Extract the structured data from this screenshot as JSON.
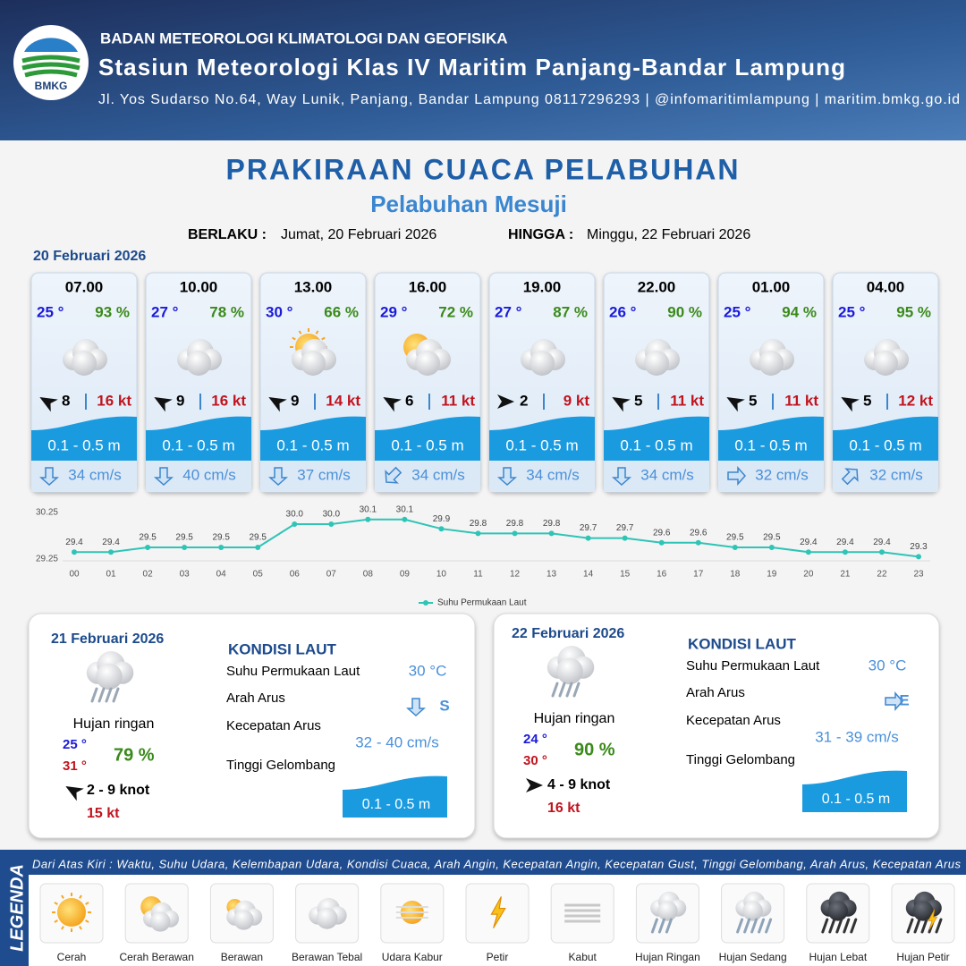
{
  "header": {
    "org": "BADAN METEOROLOGI KLIMATOLOGI DAN GEOFISIKA",
    "station": "Stasiun Meteorologi Klas IV Maritim Panjang-Bandar Lampung",
    "address": "Jl. Yos Sudarso No.64, Way Lunik, Panjang, Bandar Lampung 08117296293 | @infomaritimlampung | maritim.bmkg.go.id",
    "logo_text": "BMKG"
  },
  "title": "PRAKIRAAN CUACA PELABUHAN",
  "subtitle": "Pelabuhan Mesuji",
  "validity": {
    "from_label": "BERLAKU :",
    "from": "Jumat, 20 Februari 2026",
    "to_label": "HINGGA :",
    "to": "Minggu, 22 Februari 2026"
  },
  "day1": {
    "date": "20 Februari 2026",
    "forecasts": [
      {
        "time": "07.00",
        "temp": "25 °",
        "humidity": "93 %",
        "wind_speed": "8",
        "gust": "16 kt",
        "wave": "0.1 - 0.5 m",
        "current": "34 cm/s"
      },
      {
        "time": "10.00",
        "temp": "27 °",
        "humidity": "78 %",
        "wind_speed": "9",
        "gust": "16 kt",
        "wave": "0.1 - 0.5 m",
        "current": "40 cm/s"
      },
      {
        "time": "13.00",
        "temp": "30 °",
        "humidity": "66 %",
        "wind_speed": "9",
        "gust": "14 kt",
        "wave": "0.1 - 0.5 m",
        "current": "37 cm/s"
      },
      {
        "time": "16.00",
        "temp": "29 °",
        "humidity": "72 %",
        "wind_speed": "6",
        "gust": "11 kt",
        "wave": "0.1 - 0.5 m",
        "current": "34 cm/s"
      },
      {
        "time": "19.00",
        "temp": "27 °",
        "humidity": "87 %",
        "wind_speed": "2",
        "gust": "9 kt",
        "wave": "0.1 - 0.5 m",
        "current": "34 cm/s"
      },
      {
        "time": "22.00",
        "temp": "26 °",
        "humidity": "90 %",
        "wind_speed": "5",
        "gust": "11 kt",
        "wave": "0.1 - 0.5 m",
        "current": "34 cm/s"
      },
      {
        "time": "01.00",
        "temp": "25 °",
        "humidity": "94 %",
        "wind_speed": "5",
        "gust": "11 kt",
        "wave": "0.1 - 0.5 m",
        "current": "32 cm/s"
      },
      {
        "time": "04.00",
        "temp": "25 °",
        "humidity": "95 %",
        "wind_speed": "5",
        "gust": "12 kt",
        "wave": "0.1 - 0.5 m",
        "current": "32 cm/s"
      }
    ]
  },
  "chart_data": {
    "type": "line",
    "categories": [
      "00",
      "01",
      "02",
      "03",
      "04",
      "05",
      "06",
      "07",
      "08",
      "09",
      "10",
      "11",
      "12",
      "13",
      "14",
      "15",
      "16",
      "17",
      "18",
      "19",
      "20",
      "21",
      "22",
      "23"
    ],
    "series": [
      {
        "name": "Suhu Permukaan Laut",
        "color": "#2ec4b6",
        "values": [
          29.4,
          29.4,
          29.5,
          29.5,
          29.5,
          29.5,
          30.0,
          30.0,
          30.1,
          30.1,
          29.9,
          29.8,
          29.8,
          29.8,
          29.7,
          29.7,
          29.6,
          29.6,
          29.5,
          29.5,
          29.4,
          29.4,
          29.4,
          29.3
        ],
        "value_labels": [
          "29.4",
          "29.4",
          "29.5",
          "29.5",
          "29.5",
          "29.5",
          "30.0",
          "30.0",
          "30.1",
          "30.1",
          "29.9",
          "29.8",
          "29.8",
          "29.8",
          "29.7",
          "29.7",
          "29.6",
          "29.6",
          "29.5",
          "29.5",
          "29.4",
          "29.4",
          "29.4",
          "29.3"
        ]
      }
    ],
    "ylim": [
      29.25,
      30.25
    ],
    "yticks": [
      29.25,
      30.25
    ],
    "legend": "bottom"
  },
  "outlook": [
    {
      "date": "21 Februari 2026",
      "condition": "Hujan ringan",
      "temp_min": "25 °",
      "temp_max": "31 °",
      "humidity": "79 %",
      "wind": "2  - 9 knot",
      "gust": "15 kt",
      "sea": {
        "title": "KONDISI LAUT",
        "sst_label": "Suhu Permukaan Laut",
        "sst": "30 °C",
        "dir_label": "Arah Arus",
        "dir": "S",
        "speed_label": "Kecepatan Arus",
        "speed": "32 - 40 cm/s",
        "wave_label": "Tinggi Gelombang",
        "wave": "0.1 - 0.5 m"
      }
    },
    {
      "date": "22 Februari 2026",
      "condition": "Hujan ringan",
      "temp_min": "24 °",
      "temp_max": "30 °",
      "humidity": "90 %",
      "wind": "4 - 9 knot",
      "gust": "16 kt",
      "sea": {
        "title": "KONDISI LAUT",
        "sst_label": "Suhu Permukaan Laut",
        "sst": "30 °C",
        "dir_label": "Arah Arus",
        "dir": "E",
        "speed_label": "Kecepatan Arus",
        "speed": "31 - 39 cm/s",
        "wave_label": "Tinggi Gelombang",
        "wave": "0.1 - 0.5 m"
      }
    }
  ],
  "legend": {
    "title": "LEGENDA",
    "note": "Dari Atas Kiri : Waktu, Suhu Udara, Kelembapan Udara, Kondisi Cuaca, Arah Angin, Kecepatan Angin, Kecepatan Gust, Tinggi Gelombang, Arah Arus, Kecepatan Arus",
    "items": [
      "Cerah",
      "Cerah Berawan",
      "Berawan",
      "Berawan Tebal",
      "Udara Kabur",
      "Petir",
      "Kabut",
      "Hujan Ringan",
      "Hujan Sedang",
      "Hujan Lebat",
      "Hujan Petir"
    ]
  }
}
